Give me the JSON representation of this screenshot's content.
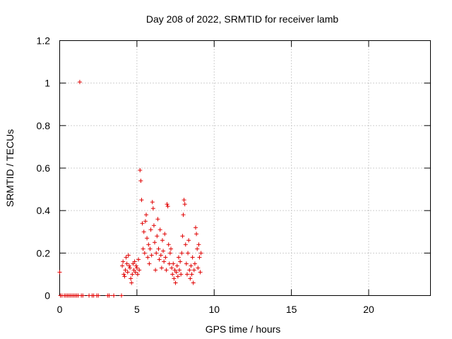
{
  "chart_data": {
    "type": "scatter",
    "title": "Day 208 of 2022, SRMTID for receiver lamb",
    "xlabel": "GPS time / hours",
    "ylabel": "SRMTID / TECUs",
    "xlim": [
      0,
      24
    ],
    "ylim": [
      0,
      1.2
    ],
    "xticks": [
      0,
      5,
      10,
      15,
      20
    ],
    "xtick_labels": [
      "0",
      "5",
      "10",
      "15",
      "20"
    ],
    "yticks": [
      0,
      0.2,
      0.4,
      0.6,
      0.8,
      1.0,
      1.2
    ],
    "ytick_labels": [
      "0",
      "0.2",
      "0.4",
      "0.6",
      "0.8",
      "1",
      "1.2"
    ],
    "grid": true,
    "marker": "+",
    "series": [
      {
        "name": "lamb",
        "color": "#e00000",
        "points": [
          [
            0.0,
            0.11
          ],
          [
            0.05,
            0.0
          ],
          [
            0.15,
            0.0
          ],
          [
            0.3,
            0.0
          ],
          [
            0.4,
            0.0
          ],
          [
            0.5,
            0.0
          ],
          [
            0.6,
            0.0
          ],
          [
            0.7,
            0.0
          ],
          [
            0.8,
            0.0
          ],
          [
            0.9,
            0.0
          ],
          [
            1.0,
            0.0
          ],
          [
            1.1,
            0.0
          ],
          [
            1.2,
            0.0
          ],
          [
            1.3,
            1.005
          ],
          [
            1.4,
            0.0
          ],
          [
            1.5,
            0.0
          ],
          [
            1.9,
            0.0
          ],
          [
            2.1,
            0.0
          ],
          [
            2.2,
            0.0
          ],
          [
            2.4,
            0.0
          ],
          [
            2.5,
            0.0
          ],
          [
            3.1,
            0.0
          ],
          [
            3.2,
            0.0
          ],
          [
            3.5,
            0.0
          ],
          [
            4.0,
            0.0
          ],
          [
            4.05,
            0.14
          ],
          [
            4.1,
            0.16
          ],
          [
            4.15,
            0.1
          ],
          [
            4.2,
            0.09
          ],
          [
            4.25,
            0.12
          ],
          [
            4.3,
            0.18
          ],
          [
            4.35,
            0.15
          ],
          [
            4.4,
            0.11
          ],
          [
            4.45,
            0.19
          ],
          [
            4.5,
            0.14
          ],
          [
            4.55,
            0.13
          ],
          [
            4.6,
            0.08
          ],
          [
            4.65,
            0.06
          ],
          [
            4.7,
            0.1
          ],
          [
            4.75,
            0.15
          ],
          [
            4.8,
            0.12
          ],
          [
            4.85,
            0.16
          ],
          [
            4.9,
            0.11
          ],
          [
            4.95,
            0.14
          ],
          [
            5.0,
            0.13
          ],
          [
            5.05,
            0.1
          ],
          [
            5.1,
            0.17
          ],
          [
            5.15,
            0.12
          ],
          [
            5.2,
            0.59
          ],
          [
            5.25,
            0.54
          ],
          [
            5.3,
            0.45
          ],
          [
            5.35,
            0.34
          ],
          [
            5.4,
            0.22
          ],
          [
            5.45,
            0.3
          ],
          [
            5.5,
            0.2
          ],
          [
            5.55,
            0.35
          ],
          [
            5.6,
            0.38
          ],
          [
            5.65,
            0.27
          ],
          [
            5.7,
            0.18
          ],
          [
            5.75,
            0.24
          ],
          [
            5.8,
            0.15
          ],
          [
            5.85,
            0.22
          ],
          [
            5.9,
            0.31
          ],
          [
            5.95,
            0.19
          ],
          [
            6.0,
            0.44
          ],
          [
            6.05,
            0.41
          ],
          [
            6.1,
            0.33
          ],
          [
            6.15,
            0.25
          ],
          [
            6.2,
            0.12
          ],
          [
            6.25,
            0.2
          ],
          [
            6.3,
            0.28
          ],
          [
            6.35,
            0.36
          ],
          [
            6.4,
            0.22
          ],
          [
            6.45,
            0.17
          ],
          [
            6.5,
            0.31
          ],
          [
            6.55,
            0.19
          ],
          [
            6.6,
            0.13
          ],
          [
            6.65,
            0.26
          ],
          [
            6.7,
            0.21
          ],
          [
            6.75,
            0.16
          ],
          [
            6.8,
            0.29
          ],
          [
            6.85,
            0.18
          ],
          [
            6.9,
            0.12
          ],
          [
            6.95,
            0.43
          ],
          [
            7.0,
            0.42
          ],
          [
            7.05,
            0.24
          ],
          [
            7.1,
            0.15
          ],
          [
            7.15,
            0.2
          ],
          [
            7.2,
            0.22
          ],
          [
            7.25,
            0.13
          ],
          [
            7.3,
            0.1
          ],
          [
            7.35,
            0.15
          ],
          [
            7.4,
            0.08
          ],
          [
            7.45,
            0.12
          ],
          [
            7.5,
            0.06
          ],
          [
            7.55,
            0.11
          ],
          [
            7.6,
            0.14
          ],
          [
            7.65,
            0.09
          ],
          [
            7.7,
            0.18
          ],
          [
            7.75,
            0.12
          ],
          [
            7.8,
            0.16
          ],
          [
            7.85,
            0.1
          ],
          [
            7.9,
            0.2
          ],
          [
            7.95,
            0.28
          ],
          [
            8.0,
            0.38
          ],
          [
            8.05,
            0.45
          ],
          [
            8.1,
            0.43
          ],
          [
            8.15,
            0.24
          ],
          [
            8.2,
            0.15
          ],
          [
            8.25,
            0.1
          ],
          [
            8.3,
            0.2
          ],
          [
            8.35,
            0.26
          ],
          [
            8.4,
            0.12
          ],
          [
            8.45,
            0.08
          ],
          [
            8.5,
            0.14
          ],
          [
            8.55,
            0.1
          ],
          [
            8.6,
            0.18
          ],
          [
            8.65,
            0.06
          ],
          [
            8.7,
            0.12
          ],
          [
            8.75,
            0.15
          ],
          [
            8.8,
            0.32
          ],
          [
            8.85,
            0.29
          ],
          [
            8.9,
            0.22
          ],
          [
            8.95,
            0.13
          ],
          [
            9.0,
            0.24
          ],
          [
            9.05,
            0.18
          ],
          [
            9.1,
            0.11
          ],
          [
            9.15,
            0.2
          ]
        ]
      }
    ]
  }
}
